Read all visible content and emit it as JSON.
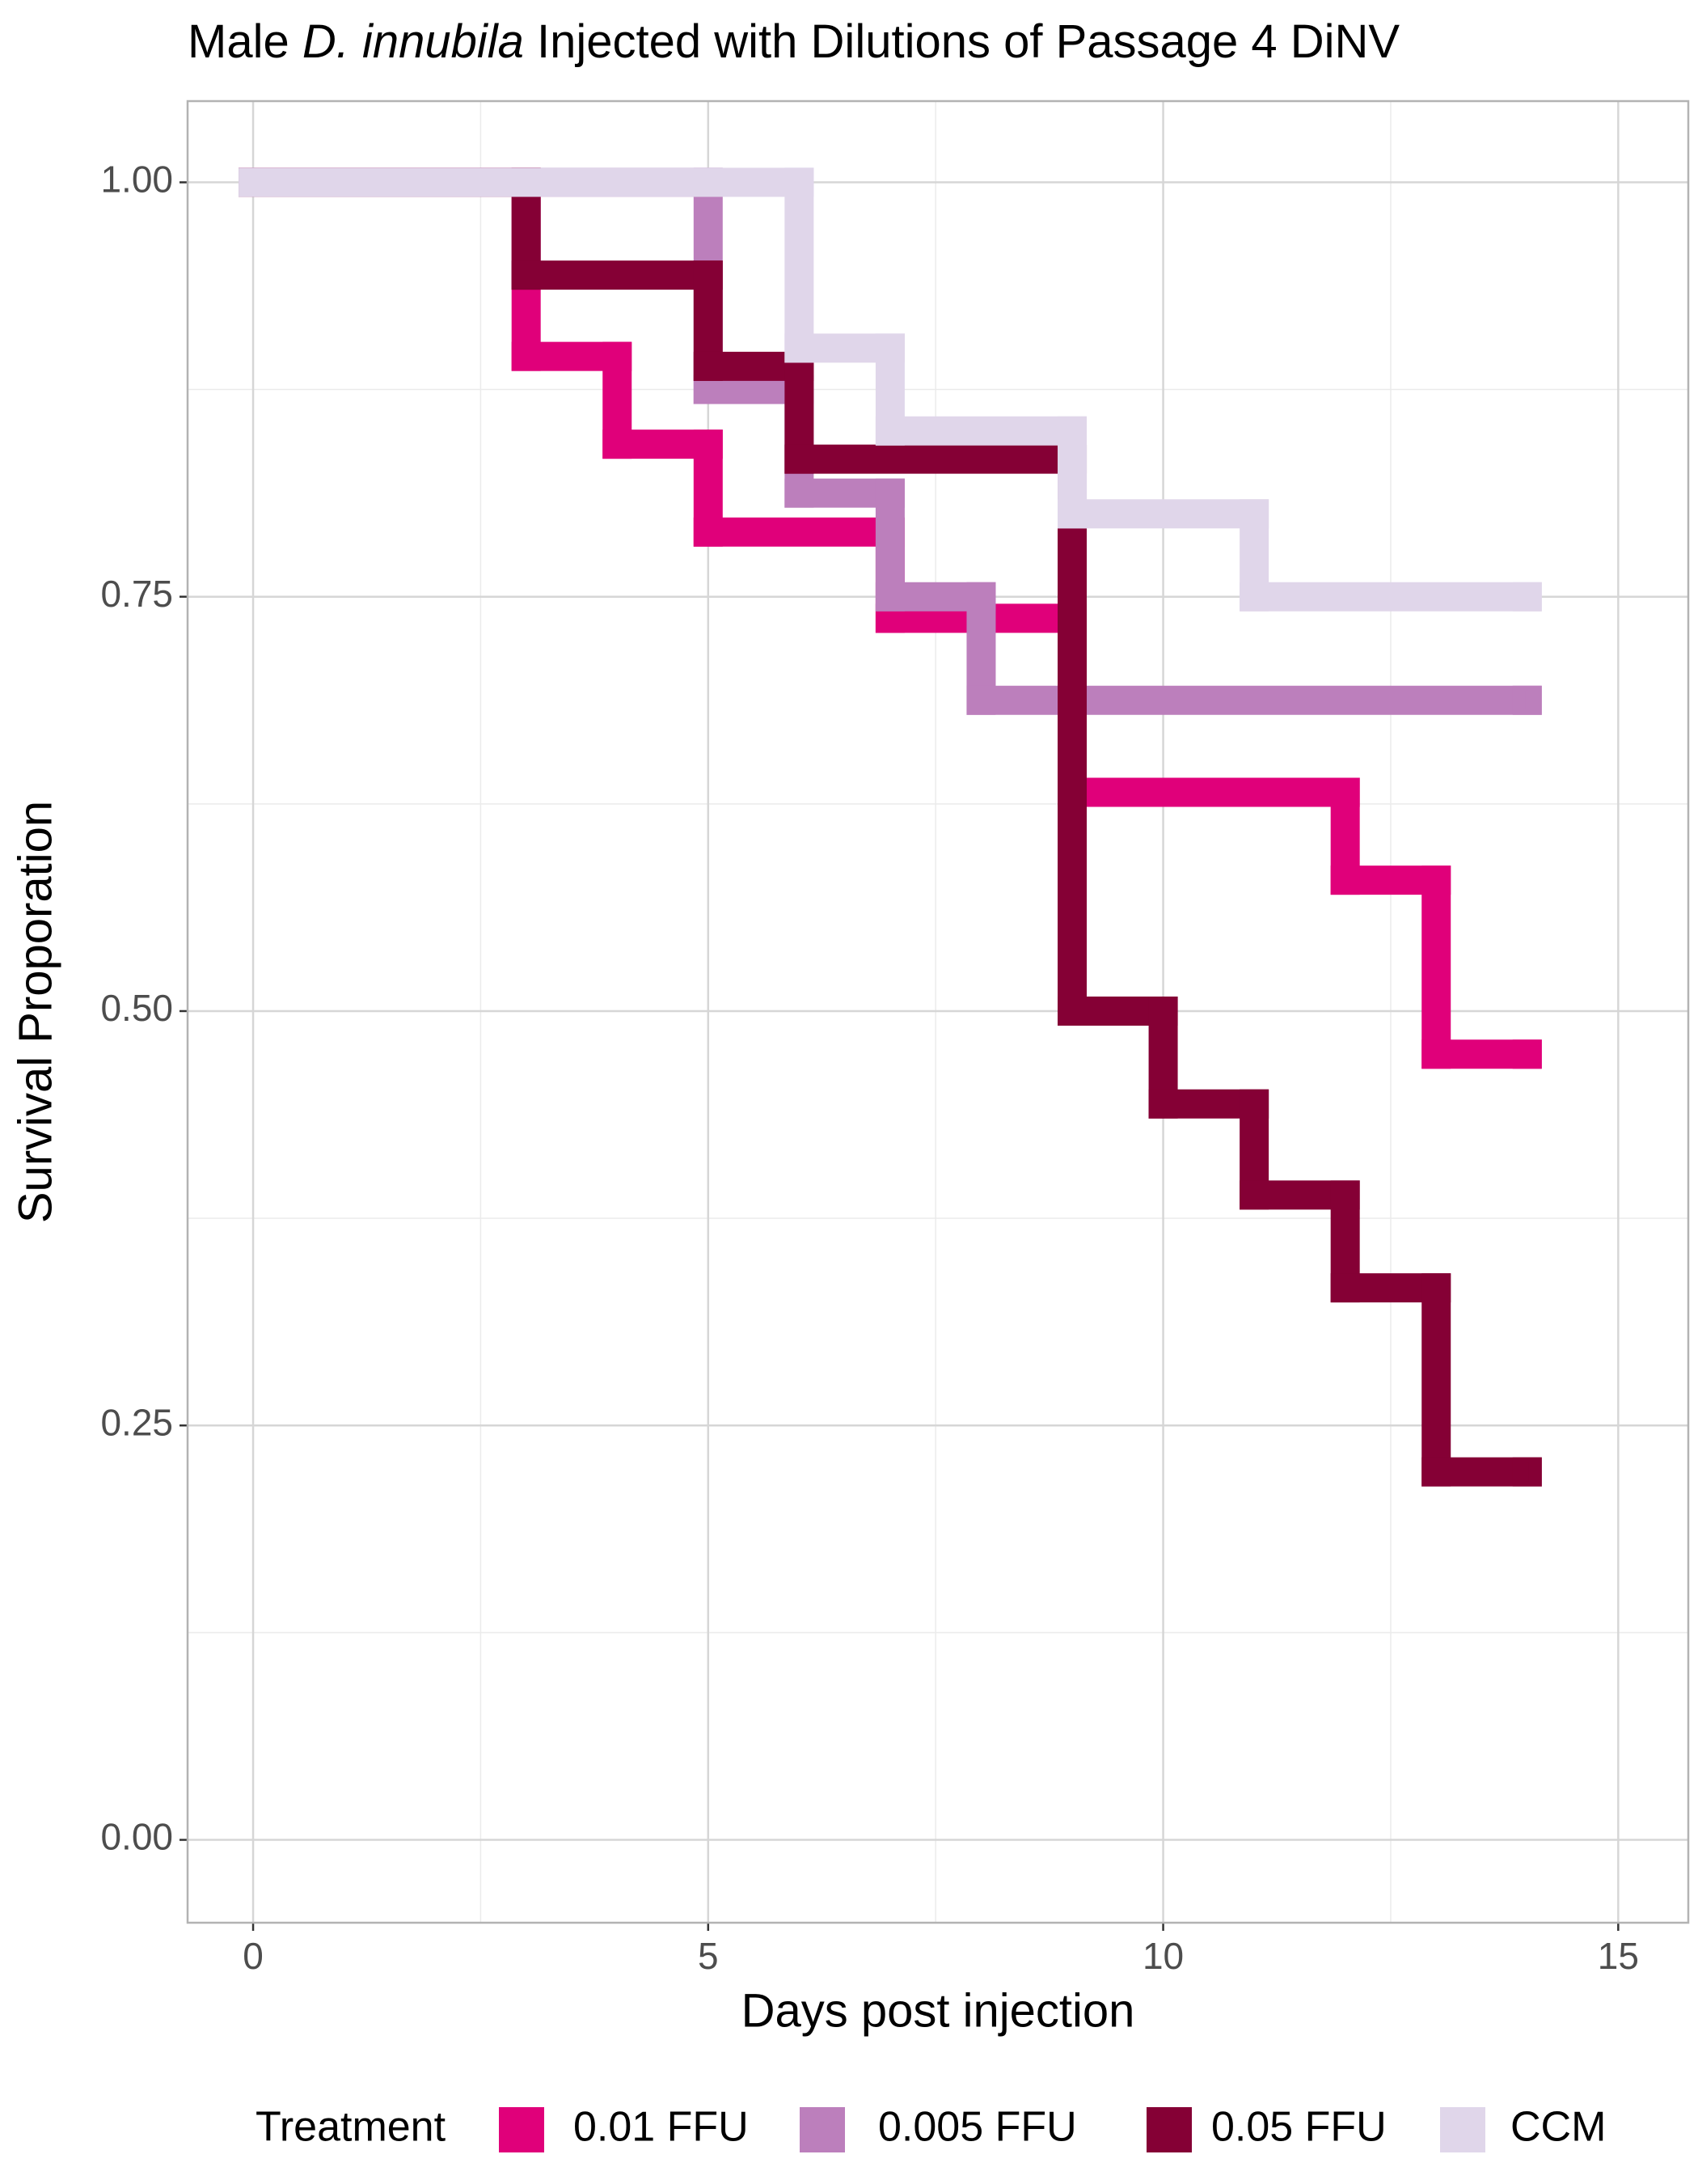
{
  "chart_data": {
    "type": "step",
    "title_parts": [
      "Male",
      "D. innubila",
      "Injected with Dilutions of Passage 4 DiNV"
    ],
    "x_label": "Days post injection",
    "y_label": "Survival Proporation",
    "legend_title": "Treatment",
    "legend_position": "bottom",
    "xlim": [
      -0.72,
      15.77
    ],
    "ylim": [
      -0.05,
      1.049
    ],
    "xticks": [
      0,
      5,
      10,
      15
    ],
    "yticks": [
      {
        "value": 0,
        "label": "0.00"
      },
      {
        "value": 0.25,
        "label": "0.25"
      },
      {
        "value": 0.5,
        "label": "0.50"
      },
      {
        "value": 0.75,
        "label": "0.75"
      },
      {
        "value": 1,
        "label": "1.00"
      }
    ],
    "x_minor_grid": [
      2.5,
      7.5,
      12.5
    ],
    "y_minor_grid": [
      0.125,
      0.375,
      0.625,
      0.875
    ],
    "grid": true,
    "series": [
      {
        "name": "0.01 FFU",
        "color": "#e0007a",
        "x": [
          0,
          3,
          4,
          5,
          7,
          9,
          12,
          13,
          14
        ],
        "values": [
          1,
          0.895,
          0.842,
          0.789,
          0.737,
          0.632,
          0.579,
          0.474,
          0.474
        ]
      },
      {
        "name": "0.005 FFU",
        "color": "#bc7fbc",
        "x": [
          0,
          5,
          6,
          7,
          8,
          14
        ],
        "values": [
          1,
          0.875,
          0.8125,
          0.75,
          0.6875,
          0.6875
        ]
      },
      {
        "name": "0.05 FFU",
        "color": "#850035",
        "x": [
          0,
          3,
          5,
          6,
          9,
          10,
          11,
          12,
          13,
          14
        ],
        "values": [
          1,
          0.944,
          0.889,
          0.833,
          0.5,
          0.444,
          0.389,
          0.333,
          0.222,
          0.222
        ]
      },
      {
        "name": "CCM",
        "color": "#e0d6ea",
        "x": [
          0,
          6,
          7,
          9,
          11,
          14
        ],
        "values": [
          1,
          0.9,
          0.85,
          0.8,
          0.75,
          0.75
        ]
      }
    ]
  }
}
